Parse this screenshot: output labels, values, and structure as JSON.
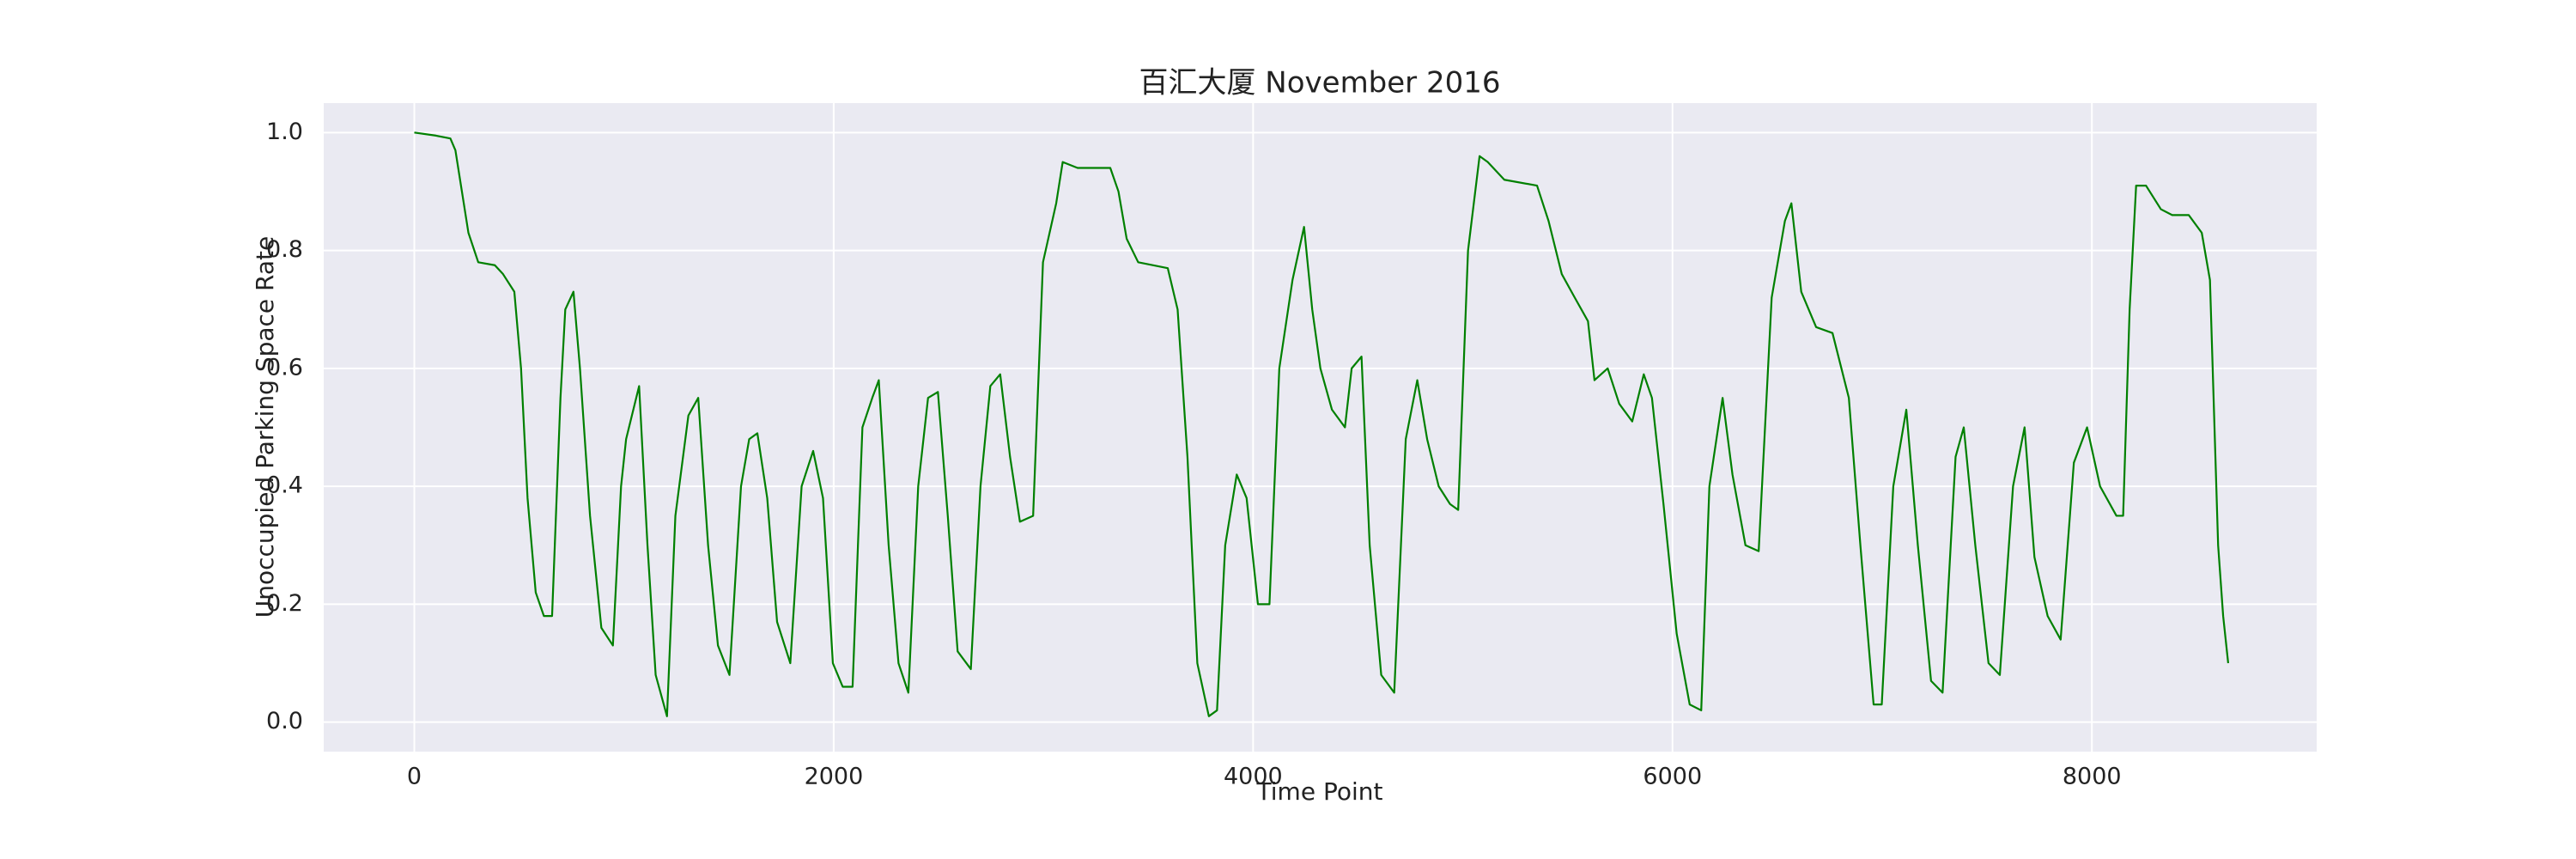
{
  "chart_data": {
    "type": "line",
    "title": "百汇大厦 November 2016",
    "x_label": "Time Point",
    "y_label": "Unoccupied Parking Space Rate",
    "color": "#008000",
    "grid": true,
    "xlim": [
      -432,
      9072
    ],
    "ylim": [
      -0.05,
      1.05
    ],
    "xticks": [
      0,
      2000,
      4000,
      6000,
      8000
    ],
    "yticks": [
      {
        "value": 0,
        "label": "0.0"
      },
      0.2,
      0.4,
      0.6,
      0.8,
      {
        "value": 1,
        "label": "1.0"
      }
    ],
    "x": [
      0,
      100,
      172,
      196,
      227,
      258,
      305,
      384,
      423,
      477,
      509,
      540,
      579,
      618,
      657,
      697,
      720,
      759,
      790,
      838,
      892,
      947,
      986,
      1010,
      1072,
      1112,
      1151,
      1205,
      1245,
      1307,
      1354,
      1401,
      1448,
      1503,
      1558,
      1597,
      1636,
      1683,
      1730,
      1793,
      1847,
      1902,
      1949,
      1996,
      2043,
      2090,
      2137,
      2184,
      2215,
      2262,
      2309,
      2356,
      2403,
      2450,
      2497,
      2544,
      2591,
      2654,
      2700,
      2747,
      2794,
      2841,
      2888,
      2951,
      2998,
      3061,
      3092,
      3163,
      3319,
      3358,
      3397,
      3452,
      3593,
      3640,
      3687,
      3734,
      3789,
      3828,
      3867,
      3922,
      3969,
      4023,
      4078,
      4125,
      4188,
      4243,
      4282,
      4321,
      4376,
      4438,
      4470,
      4517,
      4556,
      4611,
      4673,
      4728,
      4783,
      4830,
      4885,
      4939,
      4978,
      5025,
      5080,
      5119,
      5198,
      5354,
      5409,
      5472,
      5534,
      5597,
      5628,
      5691,
      5746,
      5808,
      5863,
      5902,
      5957,
      6020,
      6082,
      6137,
      6176,
      6239,
      6286,
      6348,
      6411,
      6473,
      6536,
      6567,
      6614,
      6685,
      6763,
      6841,
      6896,
      6959,
      6998,
      7053,
      7115,
      7170,
      7233,
      7288,
      7350,
      7389,
      7444,
      7507,
      7561,
      7624,
      7679,
      7726,
      7789,
      7851,
      7914,
      7977,
      8039,
      8117,
      8149,
      8180,
      8211,
      8258,
      8329,
      8383,
      8462,
      8524,
      8563,
      8602,
      8626,
      8650
    ],
    "values": [
      1.0,
      0.995,
      0.99,
      0.97,
      0.9,
      0.83,
      0.78,
      0.775,
      0.76,
      0.73,
      0.6,
      0.38,
      0.22,
      0.18,
      0.18,
      0.55,
      0.7,
      0.73,
      0.6,
      0.35,
      0.16,
      0.13,
      0.4,
      0.48,
      0.57,
      0.3,
      0.08,
      0.01,
      0.35,
      0.52,
      0.55,
      0.3,
      0.13,
      0.08,
      0.4,
      0.48,
      0.49,
      0.38,
      0.17,
      0.1,
      0.4,
      0.46,
      0.38,
      0.1,
      0.06,
      0.06,
      0.5,
      0.55,
      0.58,
      0.3,
      0.1,
      0.05,
      0.4,
      0.55,
      0.56,
      0.35,
      0.12,
      0.09,
      0.4,
      0.57,
      0.59,
      0.45,
      0.34,
      0.35,
      0.78,
      0.88,
      0.95,
      0.94,
      0.94,
      0.9,
      0.82,
      0.78,
      0.77,
      0.7,
      0.45,
      0.1,
      0.01,
      0.02,
      0.3,
      0.42,
      0.38,
      0.2,
      0.2,
      0.6,
      0.75,
      0.84,
      0.7,
      0.6,
      0.53,
      0.5,
      0.6,
      0.62,
      0.3,
      0.08,
      0.05,
      0.48,
      0.58,
      0.48,
      0.4,
      0.37,
      0.36,
      0.8,
      0.96,
      0.95,
      0.92,
      0.91,
      0.85,
      0.76,
      0.72,
      0.68,
      0.58,
      0.6,
      0.54,
      0.51,
      0.59,
      0.55,
      0.37,
      0.15,
      0.03,
      0.02,
      0.4,
      0.55,
      0.42,
      0.3,
      0.29,
      0.72,
      0.85,
      0.88,
      0.73,
      0.67,
      0.66,
      0.55,
      0.3,
      0.03,
      0.03,
      0.4,
      0.53,
      0.3,
      0.07,
      0.05,
      0.45,
      0.5,
      0.3,
      0.1,
      0.08,
      0.4,
      0.5,
      0.28,
      0.18,
      0.14,
      0.44,
      0.5,
      0.4,
      0.35,
      0.35,
      0.7,
      0.91,
      0.91,
      0.87,
      0.86,
      0.86,
      0.83,
      0.75,
      0.3,
      0.18,
      0.1
    ]
  }
}
